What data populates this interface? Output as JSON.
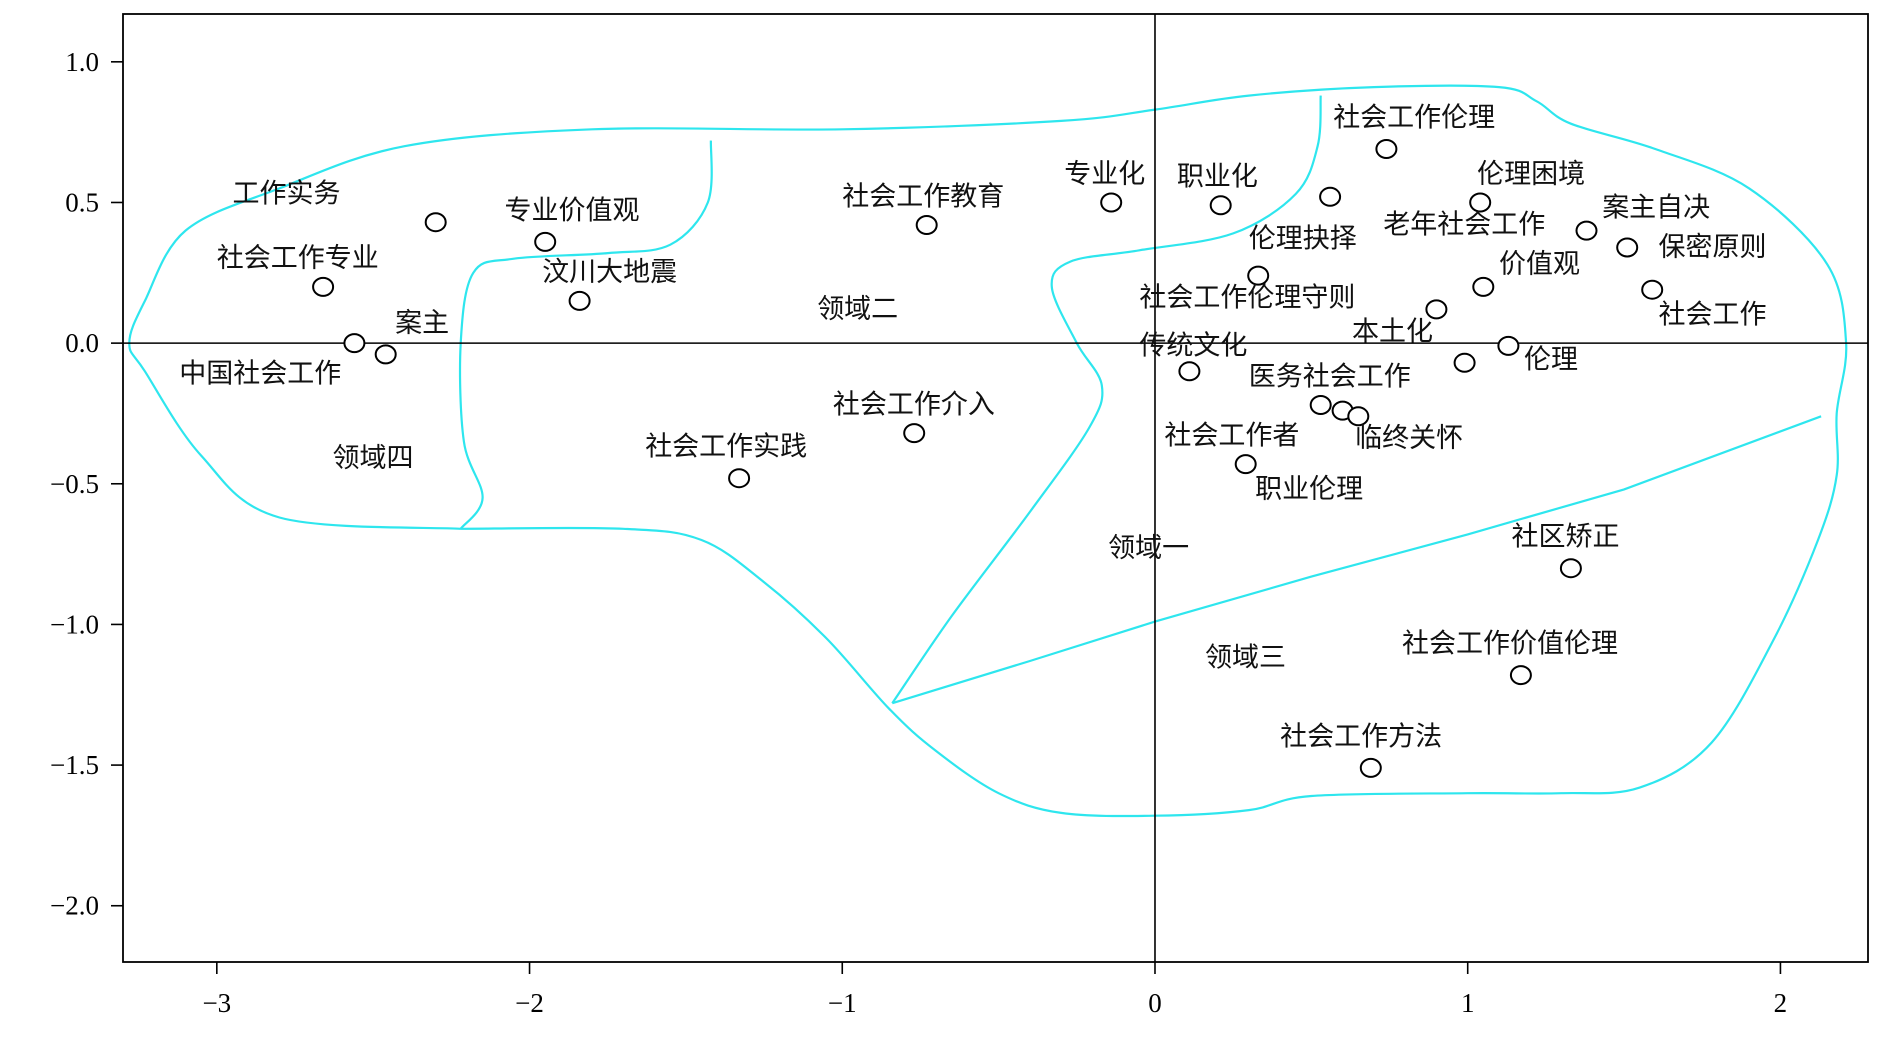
{
  "chart_data": {
    "type": "scatter",
    "xlim": [
      -3.3,
      2.28
    ],
    "ylim": [
      -2.2,
      1.17
    ],
    "x_ticks": [
      -3,
      -2,
      -1,
      0,
      1,
      2
    ],
    "y_ticks": [
      1.0,
      0.5,
      0.0,
      -0.5,
      -1.0,
      -1.5,
      -2.0
    ],
    "x_tick_labels": [
      "−3",
      "−2",
      "−1",
      "0",
      "1",
      "2"
    ],
    "y_tick_labels": [
      "1.0",
      "0.5",
      "0.0",
      "−0.5",
      "−1.0",
      "−1.5",
      "−2.0"
    ],
    "reference_lines": {
      "x": 0,
      "y": 0
    },
    "grid": false,
    "points": [
      {
        "label": "工作实务",
        "x": -2.3,
        "y": 0.43
      },
      {
        "label": "专业价值观",
        "x": -1.95,
        "y": 0.36
      },
      {
        "label": "社会工作专业",
        "x": -2.66,
        "y": 0.2
      },
      {
        "label": "汶川大地震",
        "x": -1.84,
        "y": 0.15
      },
      {
        "label": "案主",
        "x": -2.46,
        "y": -0.04
      },
      {
        "label": "中国社会工作",
        "x": -2.56,
        "y": 0.0
      },
      {
        "label": "社会工作教育",
        "x": -0.73,
        "y": 0.42
      },
      {
        "label": "专业化",
        "x": -0.14,
        "y": 0.5
      },
      {
        "label": "职业化",
        "x": 0.21,
        "y": 0.49
      },
      {
        "label": "社会工作伦理",
        "x": 0.74,
        "y": 0.69
      },
      {
        "label": "伦理困境",
        "x": 1.04,
        "y": 0.5
      },
      {
        "label": "伦理抉择",
        "x": 0.56,
        "y": 0.52
      },
      {
        "label": "老年社会工作",
        "x": 1.38,
        "y": 0.4
      },
      {
        "label": "案主自决",
        "x": 1.51,
        "y": 0.34
      },
      {
        "label": "保密原则",
        "x": 1.59,
        "y": 0.19
      },
      {
        "label": "价值观",
        "x": 1.05,
        "y": 0.2
      },
      {
        "label": "社会工作伦理守则",
        "x": 0.33,
        "y": 0.24
      },
      {
        "label": "本土化",
        "x": 0.9,
        "y": 0.12
      },
      {
        "label": "社会工作",
        "x": 0.99,
        "y": -0.07
      },
      {
        "label": "传统文化",
        "x": 0.11,
        "y": -0.1
      },
      {
        "label": "伦理",
        "x": 1.13,
        "y": -0.01
      },
      {
        "label": "医务社会工作",
        "x": 0.53,
        "y": -0.22
      },
      {
        "label": "社会工作者",
        "x": 0.6,
        "y": -0.24
      },
      {
        "label": "临终关怀",
        "x": 0.65,
        "y": -0.26
      },
      {
        "label": "职业伦理",
        "x": 0.29,
        "y": -0.43
      },
      {
        "label": "社会工作介入",
        "x": -0.77,
        "y": -0.32
      },
      {
        "label": "社会工作实践",
        "x": -1.33,
        "y": -0.48
      },
      {
        "label": "社区矫正",
        "x": 1.33,
        "y": -0.8
      },
      {
        "label": "社会工作价值伦理",
        "x": 1.17,
        "y": -1.18
      },
      {
        "label": "社会工作方法",
        "x": 0.69,
        "y": -1.51
      }
    ],
    "point_labels": [
      {
        "text": "工作实务",
        "x": -2.95,
        "y": 0.5
      },
      {
        "text": "专业价值观",
        "x": -2.08,
        "y": 0.44
      },
      {
        "text": "社会工作专业",
        "x": -3.0,
        "y": 0.27
      },
      {
        "text": "汶川大地震",
        "x": -1.96,
        "y": 0.22
      },
      {
        "text": "案主",
        "x": -2.43,
        "y": 0.04
      },
      {
        "text": "中国社会工作",
        "x": -3.12,
        "y": -0.14
      },
      {
        "text": "社会工作教育",
        "x": -1.0,
        "y": 0.49
      },
      {
        "text": "专业化",
        "x": -0.29,
        "y": 0.57
      },
      {
        "text": "职业化",
        "x": 0.07,
        "y": 0.56
      },
      {
        "text": "社会工作伦理",
        "x": 0.57,
        "y": 0.77
      },
      {
        "text": "伦理困境",
        "x": 1.03,
        "y": 0.57
      },
      {
        "text": "伦理抉择",
        "x": 0.3,
        "y": 0.34
      },
      {
        "text": "老年社会工作",
        "x": 0.73,
        "y": 0.39
      },
      {
        "text": "案主自决",
        "x": 1.43,
        "y": 0.45
      },
      {
        "text": "保密原则",
        "x": 1.61,
        "y": 0.31
      },
      {
        "text": "价值观",
        "x": 1.1,
        "y": 0.25
      },
      {
        "text": "社会工作伦理守则",
        "x": -0.05,
        "y": 0.13
      },
      {
        "text": "本土化",
        "x": 0.63,
        "y": 0.01
      },
      {
        "text": "社会工作",
        "x": 1.61,
        "y": 0.07
      },
      {
        "text": "传统文化",
        "x": -0.05,
        "y": -0.04
      },
      {
        "text": "伦理",
        "x": 1.18,
        "y": -0.09
      },
      {
        "text": "医务社会工作",
        "x": 0.3,
        "y": -0.15
      },
      {
        "text": "社会工作者",
        "x": 0.03,
        "y": -0.36
      },
      {
        "text": "临终关怀",
        "x": 0.64,
        "y": -0.37
      },
      {
        "text": "职业伦理",
        "x": 0.32,
        "y": -0.55
      },
      {
        "text": "社会工作介入",
        "x": -1.03,
        "y": -0.25
      },
      {
        "text": "社会工作实践",
        "x": -1.63,
        "y": -0.4
      },
      {
        "text": "社区矫正",
        "x": 1.14,
        "y": -0.72
      },
      {
        "text": "社会工作价值伦理",
        "x": 0.79,
        "y": -1.1
      },
      {
        "text": "社会工作方法",
        "x": 0.4,
        "y": -1.43
      }
    ],
    "region_labels": [
      {
        "text": "领域一",
        "x": -0.15,
        "y": -0.76
      },
      {
        "text": "领域二",
        "x": -1.08,
        "y": 0.09
      },
      {
        "text": "领域三",
        "x": 0.16,
        "y": -1.15
      },
      {
        "text": "领域四",
        "x": -2.63,
        "y": -0.44
      }
    ],
    "region_boundaries": [
      [
        [
          -2.22,
          -0.66
        ],
        [
          -2.8,
          -0.62
        ],
        [
          -3.05,
          -0.4
        ],
        [
          -3.23,
          -0.1
        ],
        [
          -3.28,
          0.0
        ],
        [
          -3.23,
          0.15
        ],
        [
          -3.1,
          0.4
        ],
        [
          -2.8,
          0.55
        ],
        [
          -2.4,
          0.7
        ],
        [
          -1.8,
          0.76
        ],
        [
          -1.0,
          0.76
        ],
        [
          -0.3,
          0.79
        ],
        [
          0.0,
          0.83
        ],
        [
          0.3,
          0.88
        ],
        [
          0.7,
          0.91
        ],
        [
          1.1,
          0.91
        ],
        [
          1.22,
          0.86
        ],
        [
          1.33,
          0.78
        ],
        [
          1.6,
          0.69
        ],
        [
          1.9,
          0.55
        ],
        [
          2.15,
          0.28
        ],
        [
          2.21,
          0.0
        ],
        [
          2.18,
          -0.25
        ],
        [
          2.18,
          -0.47
        ],
        [
          2.12,
          -0.7
        ],
        [
          1.98,
          -1.05
        ],
        [
          1.78,
          -1.42
        ],
        [
          1.55,
          -1.58
        ],
        [
          1.3,
          -1.6
        ],
        [
          1.0,
          -1.6
        ],
        [
          0.5,
          -1.61
        ],
        [
          0.3,
          -1.66
        ],
        [
          0.0,
          -1.68
        ],
        [
          -0.3,
          -1.67
        ],
        [
          -0.5,
          -1.6
        ],
        [
          -0.7,
          -1.45
        ],
        [
          -0.85,
          -1.3
        ],
        [
          -1.05,
          -1.05
        ],
        [
          -1.25,
          -0.85
        ],
        [
          -1.45,
          -0.7
        ],
        [
          -1.7,
          -0.66
        ],
        [
          -2.22,
          -0.66
        ]
      ],
      [
        [
          -1.42,
          0.72
        ],
        [
          -1.43,
          0.5
        ],
        [
          -1.55,
          0.35
        ],
        [
          -1.75,
          0.32
        ],
        [
          -2.05,
          0.3
        ],
        [
          -2.18,
          0.25
        ],
        [
          -2.22,
          0.0
        ],
        [
          -2.21,
          -0.35
        ],
        [
          -2.15,
          -0.55
        ],
        [
          -2.22,
          -0.66
        ]
      ],
      [
        [
          0.53,
          0.88
        ],
        [
          0.52,
          0.7
        ],
        [
          0.45,
          0.53
        ],
        [
          0.25,
          0.39
        ],
        [
          -0.05,
          0.33
        ],
        [
          -0.27,
          0.29
        ],
        [
          -0.33,
          0.2
        ],
        [
          -0.25,
          0.0
        ],
        [
          -0.17,
          -0.15
        ],
        [
          -0.21,
          -0.3
        ],
        [
          -0.4,
          -0.6
        ],
        [
          -0.65,
          -0.97
        ],
        [
          -0.84,
          -1.28
        ]
      ],
      [
        [
          -0.84,
          -1.28
        ],
        [
          -0.4,
          -1.13
        ],
        [
          0.0,
          -0.99
        ],
        [
          0.5,
          -0.83
        ],
        [
          1.0,
          -0.68
        ],
        [
          1.5,
          -0.52
        ],
        [
          2.13,
          -0.26
        ]
      ]
    ]
  },
  "colors": {
    "boundary": "#2ee6ee",
    "axis": "#000000",
    "point_fill": "#ffffff",
    "point_stroke": "#000000"
  }
}
